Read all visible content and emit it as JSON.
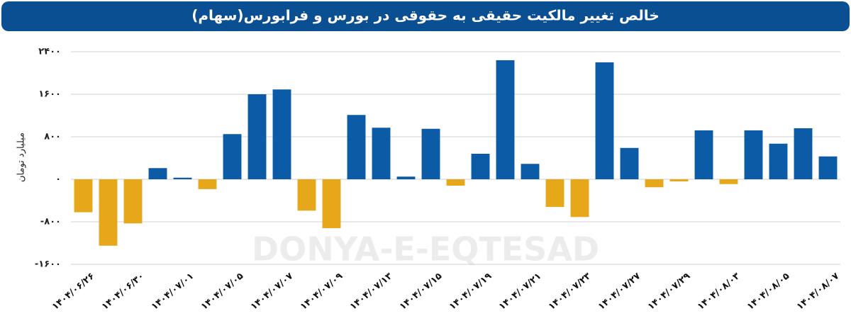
{
  "chart_data": {
    "type": "bar",
    "title": "خالص تغییر مالکیت حقیقی به حقوقی در بورس و فرابورس(سهام)",
    "y_label": "میلیارد تومان",
    "watermark": "DONYA-E-EQTESAD",
    "categories": [
      "۱۴۰۴/۰۶/۲۶",
      null,
      "۱۴۰۴/۰۶/۳۰",
      null,
      "۱۴۰۴/۰۷/۰۱",
      null,
      "۱۴۰۴/۰۷/۰۵",
      null,
      "۱۴۰۴/۰۷/۰۷",
      null,
      "۱۴۰۴/۰۷/۰۹",
      null,
      "۱۴۰۴/۰۷/۱۳",
      null,
      "۱۴۰۴/۰۷/۱۵",
      null,
      "۱۴۰۴/۰۷/۱۹",
      null,
      "۱۴۰۴/۰۷/۲۱",
      null,
      "۱۴۰۴/۰۷/۲۳",
      null,
      "۱۴۰۴/۰۷/۲۷",
      null,
      "۱۴۰۴/۰۷/۲۹",
      null,
      "۱۴۰۴/۰۸/۰۳",
      null,
      "۱۴۰۴/۰۸/۰۵",
      null,
      "۱۴۰۴/۰۸/۰۷"
    ],
    "values": [
      -620,
      -1250,
      -830,
      210,
      30,
      -185,
      850,
      1600,
      1690,
      -590,
      -920,
      1210,
      970,
      50,
      950,
      -120,
      480,
      2240,
      290,
      -520,
      -710,
      2200,
      590,
      -150,
      -40,
      920,
      -90,
      920,
      670,
      960,
      430
    ],
    "colors": {
      "positive": "#0b5ba6",
      "negative": "#e6a81a"
    },
    "ylim": [
      -1600,
      2400
    ],
    "yticks": [
      {
        "value": -1600,
        "label": "-۱۶۰۰"
      },
      {
        "value": -800,
        "label": "-۸۰۰"
      },
      {
        "value": 0,
        "label": "۰"
      },
      {
        "value": 800,
        "label": "۸۰۰"
      },
      {
        "value": 1600,
        "label": "۱۶۰۰"
      },
      {
        "value": 2400,
        "label": "۲۴۰۰"
      }
    ],
    "grid": true
  }
}
